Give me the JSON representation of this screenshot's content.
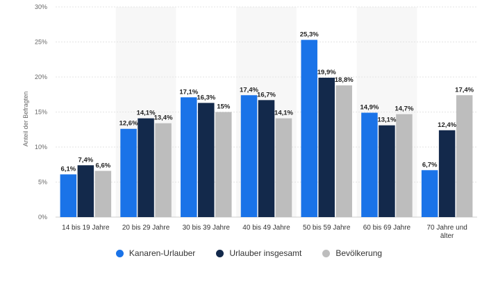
{
  "chart_data": {
    "type": "bar",
    "title": "",
    "xlabel": "",
    "ylabel": "Anteil der Befragten",
    "ylim": [
      0,
      30
    ],
    "yticks": [
      "0%",
      "5%",
      "10%",
      "15%",
      "20%",
      "25%",
      "30%"
    ],
    "grid": true,
    "legend_position": "bottom",
    "categories": [
      [
        "14 bis 19 Jahre"
      ],
      [
        "20 bis 29 Jahre"
      ],
      [
        "30 bis 39 Jahre"
      ],
      [
        "40 bis 49 Jahre"
      ],
      [
        "50 bis 59 Jahre"
      ],
      [
        "60 bis 69 Jahre"
      ],
      [
        "70 Jahre und",
        "älter"
      ]
    ],
    "series": [
      {
        "name": "Kanaren-Urlauber",
        "color": "#1a73e8",
        "values": [
          6.1,
          12.6,
          17.1,
          17.4,
          25.3,
          14.9,
          6.7
        ],
        "labels": [
          "6,1%",
          "12,6%",
          "17,1%",
          "17,4%",
          "25,3%",
          "14,9%",
          "6,7%"
        ]
      },
      {
        "name": "Urlauber insgesamt",
        "color": "#13294b",
        "values": [
          7.4,
          14.1,
          16.3,
          16.7,
          19.9,
          13.1,
          12.4
        ],
        "labels": [
          "7,4%",
          "14,1%",
          "16,3%",
          "16,7%",
          "19,9%",
          "13,1%",
          "12,4%"
        ]
      },
      {
        "name": "Bevölkerung",
        "color": "#bdbdbd",
        "values": [
          6.6,
          13.4,
          15,
          14.1,
          18.8,
          14.7,
          17.4
        ],
        "labels": [
          "6,6%",
          "13,4%",
          "15%",
          "14,1%",
          "18,8%",
          "14,7%",
          "17,4%"
        ]
      }
    ]
  }
}
